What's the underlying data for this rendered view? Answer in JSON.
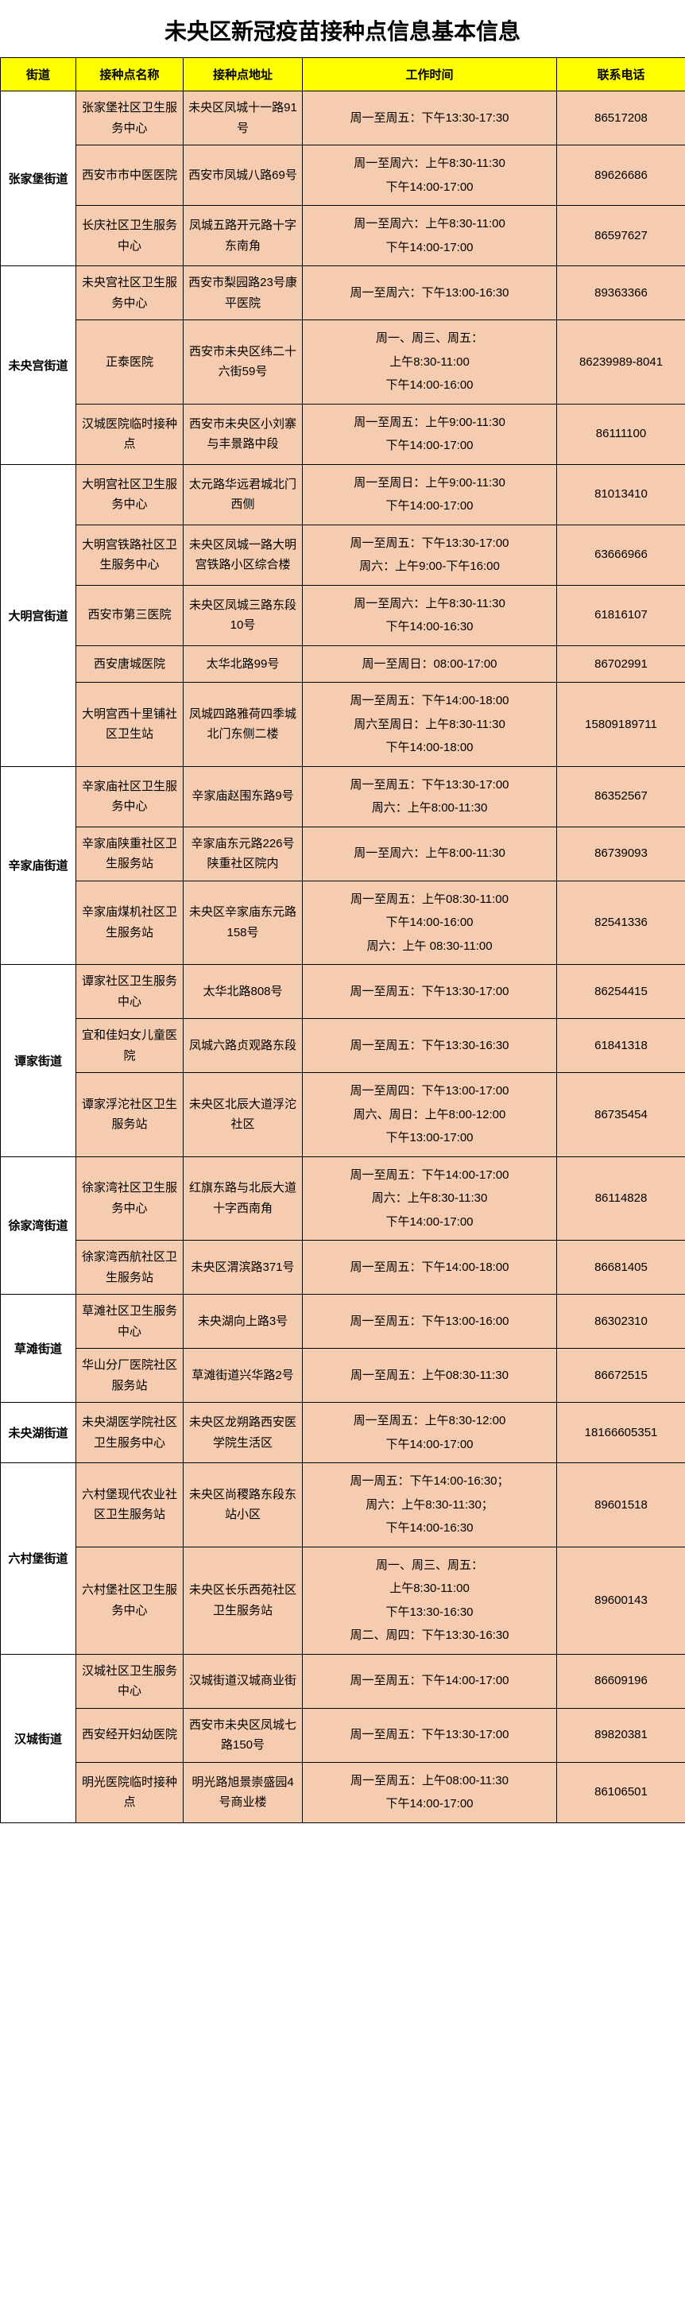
{
  "title": "未央区新冠疫苗接种点信息基本信息",
  "columns": [
    "街道",
    "接种点名称",
    "接种点地址",
    "工作时间",
    "联系电话"
  ],
  "colors": {
    "header_bg": "#ffff00",
    "cell_bg": "#f5ccb0",
    "border": "#000000"
  },
  "streets": [
    {
      "name": "张家堡街道",
      "sites": [
        {
          "site": "张家堡社区卫生服务中心",
          "addr": "未央区凤城十一路91号",
          "time": [
            "周一至周五：下午13:30-17:30"
          ],
          "tel": "86517208"
        },
        {
          "site": "西安市市中医医院",
          "addr": "西安市凤城八路69号",
          "time": [
            "周一至周六：上午8:30-11:30",
            "下午14:00-17:00"
          ],
          "tel": "89626686"
        },
        {
          "site": "长庆社区卫生服务中心",
          "addr": "凤城五路开元路十字东南角",
          "time": [
            "周一至周六：上午8:30-11:00",
            "下午14:00-17:00"
          ],
          "tel": "86597627"
        }
      ]
    },
    {
      "name": "未央宫街道",
      "sites": [
        {
          "site": "未央宫社区卫生服务中心",
          "addr": "西安市梨园路23号康平医院",
          "time": [
            "周一至周六：下午13:00-16:30"
          ],
          "tel": "89363366"
        },
        {
          "site": "正泰医院",
          "addr": "西安市未央区纬二十六街59号",
          "time": [
            "周一、周三、周五：",
            "上午8:30-11:00",
            "下午14:00-16:00"
          ],
          "tel": "86239989-8041"
        },
        {
          "site": "汉城医院临时接种点",
          "addr": "西安市未央区小刘寨与丰景路中段",
          "time": [
            "周一至周五：上午9:00-11:30",
            "下午14:00-17:00"
          ],
          "tel": "86111100"
        }
      ]
    },
    {
      "name": "大明宫街道",
      "sites": [
        {
          "site": "大明宫社区卫生服务中心",
          "addr": "太元路华远君城北门西侧",
          "time": [
            "周一至周日：上午9:00-11:30",
            "下午14:00-17:00"
          ],
          "tel": "81013410"
        },
        {
          "site": "大明宫铁路社区卫生服务中心",
          "addr": "未央区凤城一路大明宫铁路小区综合楼",
          "time": [
            "周一至周五：下午13:30-17:00",
            "周六：上午9:00-下午16:00"
          ],
          "tel": "63666966"
        },
        {
          "site": "西安市第三医院",
          "addr": "未央区凤城三路东段10号",
          "time": [
            "周一至周六：上午8:30-11:30",
            "下午14:00-16:30"
          ],
          "tel": "61816107"
        },
        {
          "site": "西安唐城医院",
          "addr": "太华北路99号",
          "time": [
            "周一至周日：08:00-17:00"
          ],
          "tel": "86702991"
        },
        {
          "site": "大明宫西十里铺社区卫生站",
          "addr": "凤城四路雅荷四季城北门东侧二楼",
          "time": [
            "周一至周五：下午14:00-18:00",
            "周六至周日：上午8:30-11:30",
            "下午14:00-18:00"
          ],
          "tel": "15809189711"
        }
      ]
    },
    {
      "name": "辛家庙街道",
      "sites": [
        {
          "site": "辛家庙社区卫生服务中心",
          "addr": "辛家庙赵围东路9号",
          "time": [
            "周一至周五：下午13:30-17:00",
            "周六：上午8:00-11:30"
          ],
          "tel": "86352567"
        },
        {
          "site": "辛家庙陕重社区卫生服务站",
          "addr": "辛家庙东元路226号陕重社区院内",
          "time": [
            "周一至周六：上午8:00-11:30"
          ],
          "tel": "86739093"
        },
        {
          "site": "辛家庙煤机社区卫生服务站",
          "addr": "未央区辛家庙东元路158号",
          "time": [
            "周一至周五：上午08:30-11:00",
            "下午14:00-16:00",
            "周六：上午 08:30-11:00"
          ],
          "tel": "82541336"
        }
      ]
    },
    {
      "name": "谭家街道",
      "sites": [
        {
          "site": "谭家社区卫生服务中心",
          "addr": "太华北路808号",
          "time": [
            "周一至周五：下午13:30-17:00"
          ],
          "tel": "86254415"
        },
        {
          "site": "宜和佳妇女儿童医院",
          "addr": "凤城六路贞观路东段",
          "time": [
            "周一至周五：下午13:30-16:30"
          ],
          "tel": "61841318"
        },
        {
          "site": "谭家浮沱社区卫生服务站",
          "addr": "未央区北辰大道浮沱社区",
          "time": [
            "周一至周四：下午13:00-17:00",
            "周六、周日：上午8:00-12:00",
            "下午13:00-17:00"
          ],
          "tel": "86735454"
        }
      ]
    },
    {
      "name": "徐家湾街道",
      "sites": [
        {
          "site": "徐家湾社区卫生服务中心",
          "addr": "红旗东路与北辰大道十字西南角",
          "time": [
            "周一至周五：下午14:00-17:00",
            "周六：上午8:30-11:30",
            "下午14:00-17:00"
          ],
          "tel": "86114828"
        },
        {
          "site": "徐家湾西航社区卫生服务站",
          "addr": "未央区渭滨路371号",
          "time": [
            "周一至周五：下午14:00-18:00"
          ],
          "tel": "86681405"
        }
      ]
    },
    {
      "name": "草滩街道",
      "sites": [
        {
          "site": "草滩社区卫生服务中心",
          "addr": "未央湖向上路3号",
          "time": [
            "周一至周五：下午13:00-16:00"
          ],
          "tel": "86302310"
        },
        {
          "site": "华山分厂医院社区服务站",
          "addr": "草滩街道兴华路2号",
          "time": [
            "周一至周五：上午08:30-11:30"
          ],
          "tel": "86672515"
        }
      ]
    },
    {
      "name": "未央湖街道",
      "sites": [
        {
          "site": "未央湖医学院社区卫生服务中心",
          "addr": "未央区龙朔路西安医学院生活区",
          "time": [
            "周一至周五：上午8:30-12:00",
            "下午14:00-17:00"
          ],
          "tel": "18166605351"
        }
      ]
    },
    {
      "name": "六村堡街道",
      "sites": [
        {
          "site": "六村堡现代农业社区卫生服务站",
          "addr": "未央区尚稷路东段东站小区",
          "time": [
            "周一周五：下午14:00-16:30；",
            "周六：上午8:30-11:30；",
            "下午14:00-16:30"
          ],
          "tel": "89601518"
        },
        {
          "site": "六村堡社区卫生服务中心",
          "addr": "未央区长乐西苑社区卫生服务站",
          "time": [
            "周一、周三、周五：",
            "上午8:30-11:00",
            "下午13:30-16:30",
            "周二、周四：下午13:30-16:30"
          ],
          "tel": "89600143"
        }
      ]
    },
    {
      "name": "汉城街道",
      "sites": [
        {
          "site": "汉城社区卫生服务中心",
          "addr": "汉城街道汉城商业街",
          "time": [
            "周一至周五：下午14:00-17:00"
          ],
          "tel": "86609196"
        },
        {
          "site": "西安经开妇幼医院",
          "addr": "西安市未央区凤城七路150号",
          "time": [
            "周一至周五：下午13:30-17:00"
          ],
          "tel": "89820381"
        },
        {
          "site": "明光医院临时接种点",
          "addr": "明光路旭景崇盛园4号商业楼",
          "time": [
            "周一至周五：上午08:00-11:30",
            "下午14:00-17:00"
          ],
          "tel": "86106501"
        }
      ]
    }
  ]
}
